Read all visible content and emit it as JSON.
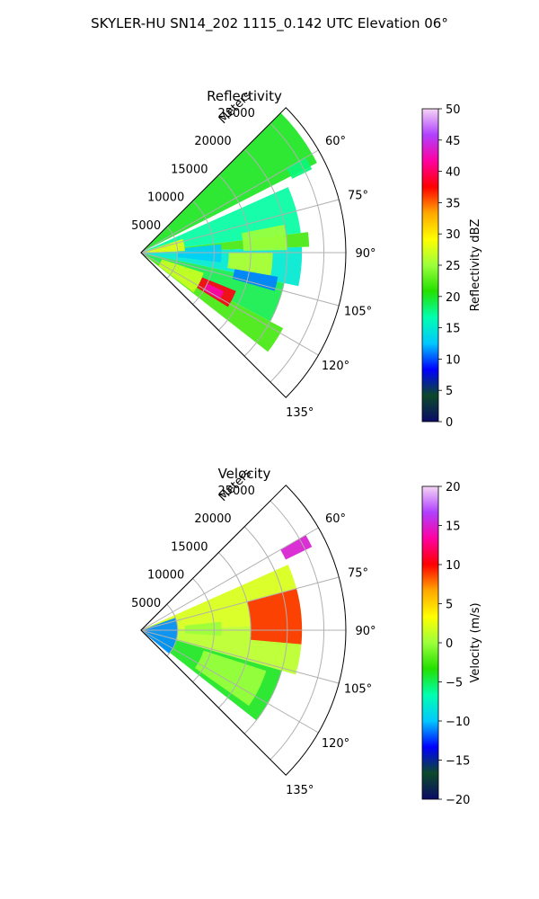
{
  "figure": {
    "suptitle": "SKYLER-HU  SN14_202  1115_0.142 UTC Elevation 06°"
  },
  "chart_data": [
    {
      "type": "heatmap",
      "projection": "polar-sector",
      "title": "Reflectivity",
      "radial_label": "Meters",
      "radial_ticks": [
        "5000",
        "10000",
        "15000",
        "20000",
        "25000"
      ],
      "r_max": 28000,
      "azimuth_range_deg": [
        45,
        135
      ],
      "azimuth_ticks": [
        "60°",
        "75°",
        "90°",
        "105°",
        "120°",
        "135°"
      ],
      "grid": true,
      "colorbar": {
        "label": "Reflectivity dBZ",
        "range": [
          0,
          50
        ],
        "ticks": [
          "0",
          "5",
          "10",
          "15",
          "20",
          "25",
          "30",
          "35",
          "40",
          "45",
          "50"
        ],
        "stops": [
          "#0b0b66",
          "#0c4a2a",
          "#0000ff",
          "#00c8ff",
          "#00ffb0",
          "#23e000",
          "#9cff3c",
          "#ffff00",
          "#ffa800",
          "#ff0000",
          "#ff00a0",
          "#b040ff",
          "#f4d6f4"
        ]
      },
      "echo_regions": [
        {
          "az": [
            45,
            63
          ],
          "r": [
            0,
            27000
          ],
          "value": 20
        },
        {
          "az": [
            66,
            83
          ],
          "r": [
            0,
            22000
          ],
          "value": 17
        },
        {
          "az": [
            83,
            88
          ],
          "r": [
            2000,
            23000
          ],
          "value": 22
        },
        {
          "az": [
            88,
            102
          ],
          "r": [
            0,
            22000
          ],
          "value": 15
        },
        {
          "az": [
            102,
            118
          ],
          "r": [
            0,
            20000
          ],
          "value": 19
        },
        {
          "az": [
            118,
            128
          ],
          "r": [
            0,
            22000
          ],
          "value": 22
        },
        {
          "az": [
            84,
            97
          ],
          "r": [
            5000,
            11000
          ],
          "value": 13
        },
        {
          "az": [
            90,
            100
          ],
          "r": [
            12000,
            18000
          ],
          "value": 26
        },
        {
          "az": [
            100,
            106
          ],
          "r": [
            13000,
            19000
          ],
          "value": 11
        },
        {
          "az": [
            79,
            89
          ],
          "r": [
            14000,
            20000
          ],
          "value": 25
        },
        {
          "az": [
            112,
            122
          ],
          "r": [
            9000,
            14000
          ],
          "value": 38
        },
        {
          "az": [
            115,
            121
          ],
          "r": [
            10000,
            12500
          ],
          "value": 42
        },
        {
          "az": [
            108,
            127
          ],
          "r": [
            3000,
            9000
          ],
          "value": 27
        },
        {
          "az": [
            72,
            88
          ],
          "r": [
            0,
            6000
          ],
          "value": 28
        },
        {
          "az": [
            60,
            64
          ],
          "r": [
            23000,
            26000
          ],
          "value": 18
        }
      ]
    },
    {
      "type": "heatmap",
      "projection": "polar-sector",
      "title": "Velocity",
      "radial_label": "Meters",
      "radial_ticks": [
        "5000",
        "10000",
        "15000",
        "20000",
        "25000"
      ],
      "r_max": 28000,
      "azimuth_range_deg": [
        45,
        135
      ],
      "azimuth_ticks": [
        "60°",
        "75°",
        "90°",
        "105°",
        "120°",
        "135°"
      ],
      "grid": true,
      "colorbar": {
        "label": "Velocity (m/s)",
        "range": [
          -20,
          20
        ],
        "ticks": [
          "−20",
          "−15",
          "−10",
          "−5",
          "0",
          "5",
          "10",
          "15",
          "20"
        ],
        "stops": [
          "#0b0b66",
          "#0c4a2a",
          "#0000ff",
          "#00c8ff",
          "#00ffb0",
          "#23e000",
          "#9cff3c",
          "#ffff00",
          "#ffa800",
          "#ff0000",
          "#ff00a0",
          "#b040ff",
          "#f4d6f4"
        ]
      },
      "echo_regions": [
        {
          "az": [
            66,
            88
          ],
          "r": [
            0,
            22000
          ],
          "value": 2
        },
        {
          "az": [
            88,
            106
          ],
          "r": [
            0,
            22000
          ],
          "value": 1
        },
        {
          "az": [
            106,
            128
          ],
          "r": [
            0,
            20000
          ],
          "value": -4
        },
        {
          "az": [
            70,
            130
          ],
          "r": [
            0,
            5000
          ],
          "value": -11
        },
        {
          "az": [
            75,
            95
          ],
          "r": [
            15000,
            22000
          ],
          "value": 9
        },
        {
          "az": [
            84,
            94
          ],
          "r": [
            6000,
            11000
          ],
          "value": 0
        },
        {
          "az": [
            108,
            125
          ],
          "r": [
            9000,
            18000
          ],
          "value": 0
        },
        {
          "az": [
            60,
            64
          ],
          "r": [
            22000,
            26000
          ],
          "value": 15
        }
      ]
    }
  ]
}
